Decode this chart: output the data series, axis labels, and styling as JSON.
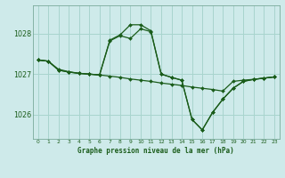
{
  "title": "Graphe pression niveau de la mer (hPa)",
  "background_color": "#ceeaea",
  "grid_color": "#a8d4ce",
  "line_color": "#1a5c1a",
  "xlim": [
    -0.5,
    23.5
  ],
  "ylim": [
    1025.4,
    1028.7
  ],
  "yticks": [
    1026,
    1027,
    1028
  ],
  "xticks": [
    0,
    1,
    2,
    3,
    4,
    5,
    6,
    7,
    8,
    9,
    10,
    11,
    12,
    13,
    14,
    15,
    16,
    17,
    18,
    19,
    20,
    21,
    22,
    23
  ],
  "series_A": [
    1027.35,
    1027.32,
    1027.1,
    1027.05,
    1027.02,
    1027.0,
    1026.98,
    1026.95,
    1026.92,
    1026.88,
    1026.85,
    1026.82,
    1026.78,
    1026.75,
    1026.72,
    1026.68,
    1026.65,
    1026.62,
    1026.58,
    1026.82,
    1026.85,
    1026.87,
    1026.9,
    1026.93
  ],
  "series_B": [
    1027.35,
    1027.32,
    1027.1,
    1027.05,
    1027.02,
    1027.0,
    1026.98,
    1027.82,
    1027.95,
    1027.88,
    1028.12,
    1028.05,
    1027.0,
    1026.92,
    1026.85,
    1025.88,
    1025.62,
    1026.05,
    1026.38,
    1026.65,
    1026.82,
    1026.87,
    1026.9,
    1026.93
  ],
  "series_C": [
    1027.35,
    1027.32,
    1027.12,
    1027.06,
    1027.02,
    1027.0,
    1026.98,
    1027.84,
    1027.97,
    1028.22,
    1028.22,
    1028.07,
    1027.0,
    1026.92,
    1026.85,
    1025.88,
    1025.62,
    1026.05,
    1026.38,
    1026.65,
    1026.82,
    1026.87,
    1026.9,
    1026.93
  ],
  "ylabel_fontsize": 6.0,
  "xlabel_fontsize": 5.5,
  "xtick_fontsize": 4.3,
  "ytick_fontsize": 5.8
}
